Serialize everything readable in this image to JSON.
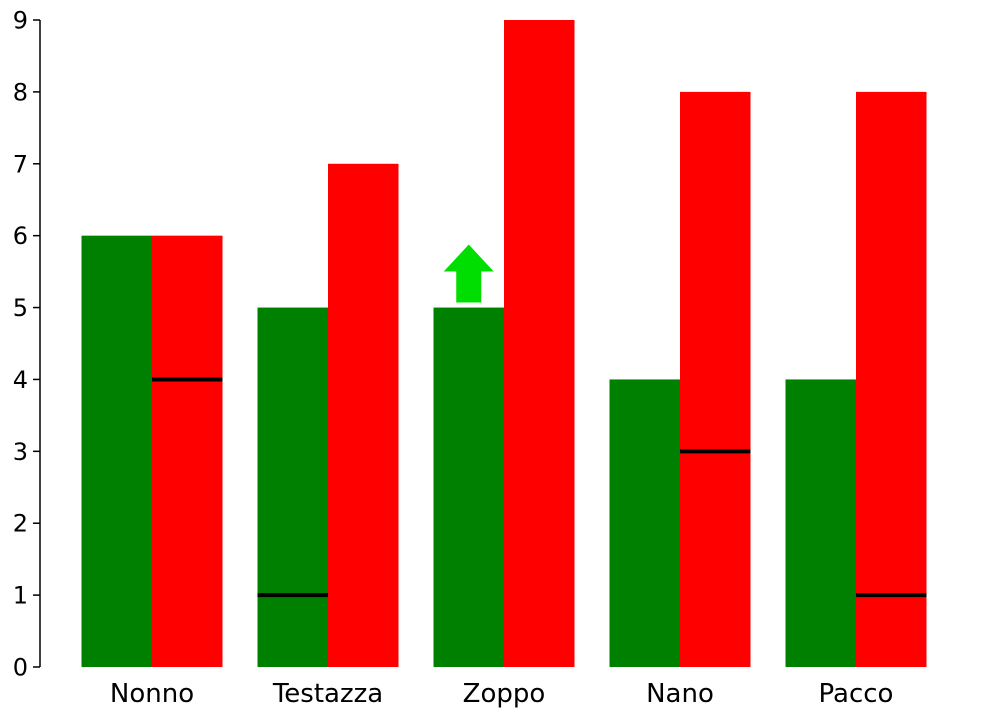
{
  "chart_data": {
    "type": "bar",
    "categories": [
      "Nonno",
      "Testazza",
      "Zoppo",
      "Nano",
      "Pacco"
    ],
    "series": [
      {
        "color": "#008000",
        "values": [
          6,
          5,
          5,
          4,
          4
        ]
      },
      {
        "color": "#ff0000",
        "values": [
          6,
          7,
          9,
          8,
          8
        ]
      }
    ],
    "markers": [
      {
        "category": "Nonno",
        "series_index": 1,
        "value": 4
      },
      {
        "category": "Testazza",
        "series_index": 0,
        "value": 1
      },
      {
        "category": "Nano",
        "series_index": 1,
        "value": 3
      },
      {
        "category": "Pacco",
        "series_index": 1,
        "value": 1
      }
    ],
    "arrows": [
      {
        "category": "Zoppo",
        "series_index": 0,
        "direction": "up",
        "color": "#00dd00"
      }
    ],
    "yticks": [
      0,
      1,
      2,
      3,
      4,
      5,
      6,
      7,
      8,
      9
    ],
    "ylim": [
      0,
      9
    ],
    "grid": false,
    "marker_color": "#000000"
  }
}
